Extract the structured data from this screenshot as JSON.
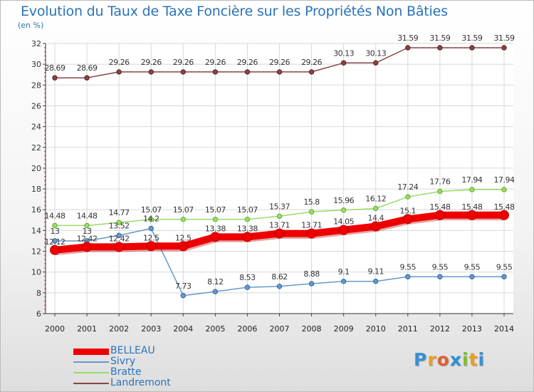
{
  "title": "Evolution du Taux de Taxe Foncière sur les Propriétés Non Bâties",
  "unit": "(en %)",
  "logo": {
    "letters": [
      "P",
      "r",
      "o",
      "x",
      "i",
      "t",
      "i"
    ],
    "colors": [
      "#3a8fd4",
      "#e8a020",
      "#e06030",
      "#2b8fd8",
      "#7cbf2f",
      "#e8a020",
      "#3a8fd4"
    ]
  },
  "chart_data": {
    "type": "line",
    "title": "Evolution du Taux de Taxe Foncière sur les Propriétés Non Bâties",
    "ylabel": "(en %)",
    "xlabel": "",
    "ylim": [
      6,
      32
    ],
    "yticks": [
      "6",
      "8",
      "10",
      "12",
      "14",
      "16",
      "18",
      "20",
      "22",
      "24",
      "26",
      "28",
      "30",
      "32"
    ],
    "categories": [
      "2000",
      "2001",
      "2002",
      "2003",
      "2004",
      "2005",
      "2006",
      "2007",
      "2008",
      "2009",
      "2010",
      "2011",
      "2012",
      "2013",
      "2014"
    ],
    "grid": true,
    "legend_position": "bottom-left",
    "series": [
      {
        "name": "BELLEAU",
        "color": "#ee0000",
        "style": "thick",
        "values": [
          12.12,
          12.42,
          12.42,
          12.5,
          12.5,
          13.38,
          13.38,
          13.71,
          13.71,
          14.05,
          14.4,
          15.1,
          15.48,
          15.48,
          15.48
        ],
        "labels": [
          "12.12",
          "12.42",
          "12.42",
          "12.5",
          "12.5",
          "13.38",
          "13.38",
          "13.71",
          "13.71",
          "14.05",
          "14.4",
          "15.1",
          "15.48",
          "15.48",
          "15.48"
        ]
      },
      {
        "name": "Sivry",
        "color": "#6699cc",
        "style": "thin",
        "values": [
          13,
          13,
          13.52,
          14.2,
          7.73,
          8.12,
          8.53,
          8.62,
          8.88,
          9.1,
          9.11,
          9.55,
          9.55,
          9.55,
          9.55
        ],
        "labels": [
          "13",
          "13",
          "13.52",
          "14.2",
          "7.73",
          "8.12",
          "8.53",
          "8.62",
          "8.88",
          "9.1",
          "9.11",
          "9.55",
          "9.55",
          "9.55",
          "9.55"
        ]
      },
      {
        "name": "Bratte",
        "color": "#99dd66",
        "style": "thin",
        "values": [
          14.48,
          14.48,
          14.77,
          15.07,
          15.07,
          15.07,
          15.07,
          15.37,
          15.8,
          15.96,
          16.12,
          17.24,
          17.76,
          17.94,
          17.94
        ],
        "labels": [
          "14.48",
          "14.48",
          "14.77",
          "15.07",
          "15.07",
          "15.07",
          "15.07",
          "15.37",
          "15.8",
          "15.96",
          "16.12",
          "17.24",
          "17.76",
          "17.94",
          "17.94"
        ]
      },
      {
        "name": "Landremont",
        "color": "#884444",
        "style": "thin",
        "values": [
          28.69,
          28.69,
          29.26,
          29.26,
          29.26,
          29.26,
          29.26,
          29.26,
          29.26,
          30.13,
          30.13,
          31.59,
          31.59,
          31.59,
          31.59
        ],
        "labels": [
          "28.69",
          "28.69",
          "29.26",
          "29.26",
          "29.26",
          "29.26",
          "29.26",
          "29.26",
          "29.26",
          "30.13",
          "30.13",
          "31.59",
          "31.59",
          "31.59",
          "31.59"
        ]
      }
    ]
  }
}
